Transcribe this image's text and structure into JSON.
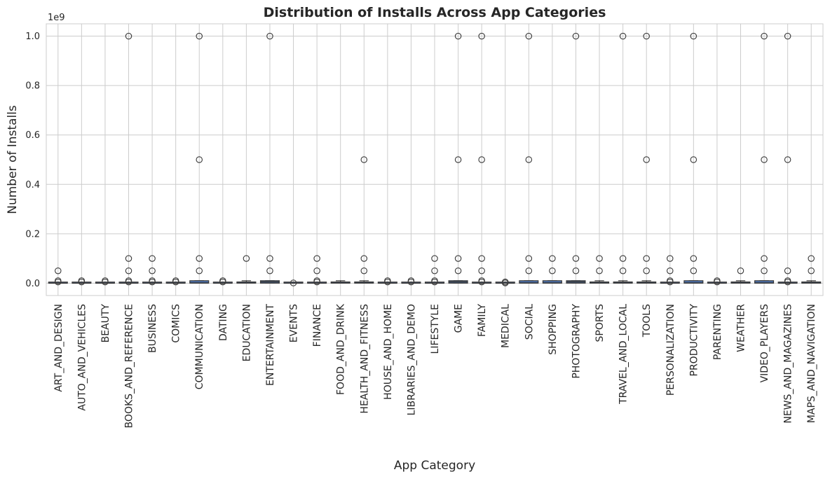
{
  "chart_data": {
    "type": "box",
    "title": "Distribution of Installs Across App Categories",
    "xlabel": "App Category",
    "ylabel": "Number of Installs",
    "y_offset_label": "1e9",
    "ylim": [
      -0.05,
      1.05
    ],
    "y_ticks": [
      0.0,
      0.2,
      0.4,
      0.6,
      0.8,
      1.0
    ],
    "y_tick_labels": [
      "0.0",
      "0.2",
      "0.4",
      "0.6",
      "0.8",
      "1.0"
    ],
    "grid": true,
    "box_color": "#4c72b0",
    "box_edge_color": "#3a3a3a",
    "categories": [
      "ART_AND_DESIGN",
      "AUTO_AND_VEHICLES",
      "BEAUTY",
      "BOOKS_AND_REFERENCE",
      "BUSINESS",
      "COMICS",
      "COMMUNICATION",
      "DATING",
      "EDUCATION",
      "ENTERTAINMENT",
      "EVENTS",
      "FINANCE",
      "FOOD_AND_DRINK",
      "HEALTH_AND_FITNESS",
      "HOUSE_AND_HOME",
      "LIBRARIES_AND_DEMO",
      "LIFESTYLE",
      "GAME",
      "FAMILY",
      "MEDICAL",
      "SOCIAL",
      "SHOPPING",
      "PHOTOGRAPHY",
      "SPORTS",
      "TRAVEL_AND_LOCAL",
      "TOOLS",
      "PERSONALIZATION",
      "PRODUCTIVITY",
      "PARENTING",
      "WEATHER",
      "VIDEO_PLAYERS",
      "NEWS_AND_MAGAZINES",
      "MAPS_AND_NAVIGATION"
    ],
    "boxes": [
      {
        "q1": 0.0,
        "median": 0.0,
        "q3": 0.001,
        "whisker_low": 0.0,
        "whisker_high": 0.0025,
        "outliers": [
          0.005,
          0.01,
          0.05
        ]
      },
      {
        "q1": 0.0,
        "median": 0.0,
        "q3": 0.0005,
        "whisker_low": 0.0,
        "whisker_high": 0.001,
        "outliers": [
          0.005,
          0.01
        ]
      },
      {
        "q1": 0.0,
        "median": 0.0,
        "q3": 0.0005,
        "whisker_low": 0.0,
        "whisker_high": 0.001,
        "outliers": [
          0.005,
          0.01
        ]
      },
      {
        "q1": 0.0,
        "median": 0.0,
        "q3": 0.001,
        "whisker_low": 0.0,
        "whisker_high": 0.0025,
        "outliers": [
          0.005,
          0.01,
          0.05,
          0.1,
          1.0
        ]
      },
      {
        "q1": 0.0,
        "median": 0.0,
        "q3": 0.001,
        "whisker_low": 0.0,
        "whisker_high": 0.0025,
        "outliers": [
          0.005,
          0.01,
          0.05,
          0.1
        ]
      },
      {
        "q1": 0.0,
        "median": 0.0,
        "q3": 0.001,
        "whisker_low": 0.0,
        "whisker_high": 0.0025,
        "outliers": [
          0.005,
          0.01
        ]
      },
      {
        "q1": 0.0,
        "median": 0.001,
        "q3": 0.01,
        "whisker_low": 0.0,
        "whisker_high": 0.01,
        "outliers": [
          0.05,
          0.1,
          0.5,
          1.0
        ]
      },
      {
        "q1": 0.0,
        "median": 0.0,
        "q3": 0.001,
        "whisker_low": 0.0,
        "whisker_high": 0.0025,
        "outliers": [
          0.005,
          0.01
        ]
      },
      {
        "q1": 0.0,
        "median": 0.001,
        "q3": 0.005,
        "whisker_low": 0.0,
        "whisker_high": 0.01,
        "outliers": [
          0.1
        ]
      },
      {
        "q1": 0.0,
        "median": 0.005,
        "q3": 0.01,
        "whisker_low": 0.0,
        "whisker_high": 0.01,
        "outliers": [
          0.05,
          0.1,
          1.0
        ]
      },
      {
        "q1": 0.0,
        "median": 0.0,
        "q3": 0.0001,
        "whisker_low": 0.0,
        "whisker_high": 0.0005,
        "outliers": [
          0.001
        ]
      },
      {
        "q1": 0.0,
        "median": 0.0,
        "q3": 0.001,
        "whisker_low": 0.0,
        "whisker_high": 0.0025,
        "outliers": [
          0.005,
          0.01,
          0.05,
          0.1
        ]
      },
      {
        "q1": 0.0,
        "median": 0.001,
        "q3": 0.005,
        "whisker_low": 0.0,
        "whisker_high": 0.01,
        "outliers": []
      },
      {
        "q1": 0.0,
        "median": 0.001,
        "q3": 0.005,
        "whisker_low": 0.0,
        "whisker_high": 0.01,
        "outliers": [
          0.05,
          0.1,
          0.5
        ]
      },
      {
        "q1": 0.0,
        "median": 0.0,
        "q3": 0.001,
        "whisker_low": 0.0,
        "whisker_high": 0.0025,
        "outliers": [
          0.005,
          0.01
        ]
      },
      {
        "q1": 0.0,
        "median": 0.0,
        "q3": 0.001,
        "whisker_low": 0.0,
        "whisker_high": 0.0025,
        "outliers": [
          0.005,
          0.01
        ]
      },
      {
        "q1": 0.0,
        "median": 0.0,
        "q3": 0.001,
        "whisker_low": 0.0,
        "whisker_high": 0.0025,
        "outliers": [
          0.005,
          0.01,
          0.05,
          0.1
        ]
      },
      {
        "q1": 0.0,
        "median": 0.005,
        "q3": 0.01,
        "whisker_low": 0.0,
        "whisker_high": 0.01,
        "outliers": [
          0.05,
          0.1,
          0.5,
          1.0
        ]
      },
      {
        "q1": 0.0,
        "median": 0.0,
        "q3": 0.001,
        "whisker_low": 0.0,
        "whisker_high": 0.0025,
        "outliers": [
          0.005,
          0.01,
          0.05,
          0.1,
          0.5,
          1.0
        ]
      },
      {
        "q1": 0.0,
        "median": 0.0,
        "q3": 0.0001,
        "whisker_low": 0.0,
        "whisker_high": 0.0005,
        "outliers": [
          0.001,
          0.005
        ]
      },
      {
        "q1": 0.0,
        "median": 0.001,
        "q3": 0.01,
        "whisker_low": 0.0,
        "whisker_high": 0.01,
        "outliers": [
          0.05,
          0.1,
          0.5,
          1.0
        ]
      },
      {
        "q1": 0.0,
        "median": 0.001,
        "q3": 0.01,
        "whisker_low": 0.0,
        "whisker_high": 0.01,
        "outliers": [
          0.05,
          0.1
        ]
      },
      {
        "q1": 0.0,
        "median": 0.005,
        "q3": 0.01,
        "whisker_low": 0.0,
        "whisker_high": 0.01,
        "outliers": [
          0.05,
          0.1,
          1.0
        ]
      },
      {
        "q1": 0.0,
        "median": 0.001,
        "q3": 0.005,
        "whisker_low": 0.0,
        "whisker_high": 0.01,
        "outliers": [
          0.05,
          0.1
        ]
      },
      {
        "q1": 0.0,
        "median": 0.001,
        "q3": 0.005,
        "whisker_low": 0.0,
        "whisker_high": 0.01,
        "outliers": [
          0.05,
          0.1,
          1.0
        ]
      },
      {
        "q1": 0.0,
        "median": 0.001,
        "q3": 0.005,
        "whisker_low": 0.0,
        "whisker_high": 0.01,
        "outliers": [
          0.05,
          0.1,
          0.5,
          1.0
        ]
      },
      {
        "q1": 0.0,
        "median": 0.0,
        "q3": 0.001,
        "whisker_low": 0.0,
        "whisker_high": 0.0025,
        "outliers": [
          0.005,
          0.01,
          0.05,
          0.1
        ]
      },
      {
        "q1": 0.0,
        "median": 0.001,
        "q3": 0.01,
        "whisker_low": 0.0,
        "whisker_high": 0.01,
        "outliers": [
          0.05,
          0.1,
          0.5,
          1.0
        ]
      },
      {
        "q1": 0.0,
        "median": 0.0,
        "q3": 0.001,
        "whisker_low": 0.0,
        "whisker_high": 0.0025,
        "outliers": [
          0.005,
          0.01
        ]
      },
      {
        "q1": 0.0,
        "median": 0.001,
        "q3": 0.005,
        "whisker_low": 0.0,
        "whisker_high": 0.01,
        "outliers": [
          0.05
        ]
      },
      {
        "q1": 0.0,
        "median": 0.001,
        "q3": 0.01,
        "whisker_low": 0.0,
        "whisker_high": 0.01,
        "outliers": [
          0.05,
          0.1,
          0.5,
          1.0
        ]
      },
      {
        "q1": 0.0,
        "median": 0.0,
        "q3": 0.001,
        "whisker_low": 0.0,
        "whisker_high": 0.0025,
        "outliers": [
          0.005,
          0.01,
          0.05,
          0.5,
          1.0
        ]
      },
      {
        "q1": 0.0,
        "median": 0.001,
        "q3": 0.005,
        "whisker_low": 0.0,
        "whisker_high": 0.01,
        "outliers": [
          0.05,
          0.1
        ]
      }
    ]
  }
}
